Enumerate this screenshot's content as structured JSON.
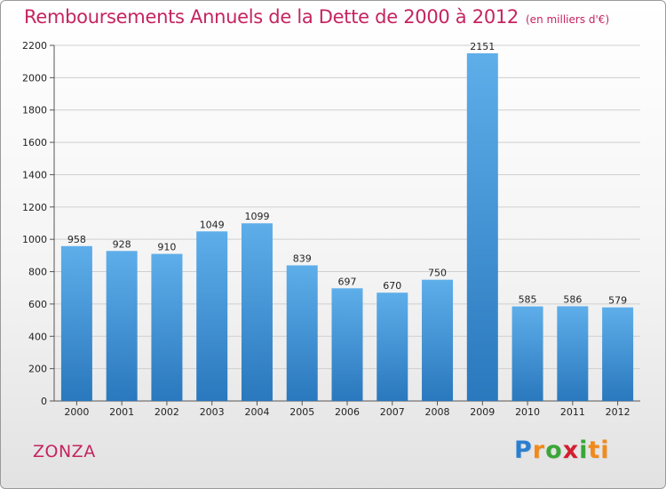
{
  "header": {
    "title": "Remboursements Annuels de la Dette de 2000 à 2012",
    "subtitle": "(en milliers d'€)"
  },
  "footer": {
    "town": "ZONZA",
    "logo_text": "Proxiti"
  },
  "colors": {
    "title": "#c5245f",
    "bar_top": "#5eaeea",
    "bar_bottom": "#2a78bd",
    "grid": "#cfcfcf",
    "axis": "#555555"
  },
  "chart_data": {
    "type": "bar",
    "title": "Remboursements Annuels de la Dette de 2000 à 2012",
    "subtitle": "(en milliers d'€)",
    "xlabel": "",
    "ylabel": "",
    "categories": [
      "2000",
      "2001",
      "2002",
      "2003",
      "2004",
      "2005",
      "2006",
      "2007",
      "2008",
      "2009",
      "2010",
      "2011",
      "2012"
    ],
    "values": [
      958,
      928,
      910,
      1049,
      1099,
      839,
      697,
      670,
      750,
      2151,
      585,
      586,
      579
    ],
    "ylim": [
      0,
      2200
    ],
    "yticks": [
      0,
      200,
      400,
      600,
      800,
      1000,
      1200,
      1400,
      1600,
      1800,
      2000,
      2200
    ],
    "grid": true,
    "data_labels": true,
    "legend": "none"
  }
}
